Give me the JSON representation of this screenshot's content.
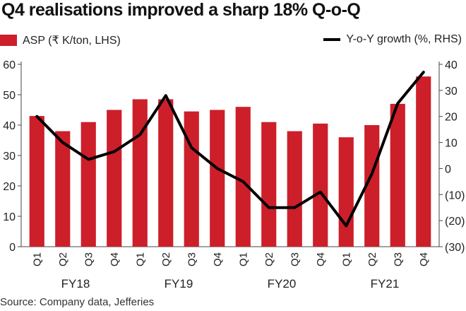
{
  "title": "Q4 realisations improved a sharp 18% Q-o-Q",
  "source": "Source: Company data, Jefferies",
  "colors": {
    "bar": "#cc1f2a",
    "line": "#000000",
    "axis": "#444444",
    "text": "#222222"
  },
  "chart_data": {
    "type": "bar+line",
    "categories": [
      "Q1",
      "Q2",
      "Q3",
      "Q4",
      "Q1",
      "Q2",
      "Q3",
      "Q4",
      "Q1",
      "Q2",
      "Q3",
      "Q4",
      "Q1",
      "Q2",
      "Q3",
      "Q4"
    ],
    "fiscal_years": [
      {
        "label": "FY18",
        "from": 0,
        "to": 3
      },
      {
        "label": "FY19",
        "from": 4,
        "to": 7
      },
      {
        "label": "FY20",
        "from": 8,
        "to": 11
      },
      {
        "label": "FY21",
        "from": 12,
        "to": 15
      }
    ],
    "series": [
      {
        "name": "ASP (₹ K/ton, LHS)",
        "type": "bar",
        "axis": "left",
        "values": [
          43,
          38,
          41,
          45,
          48.5,
          48.5,
          44.5,
          45,
          46,
          41,
          38,
          40.5,
          36,
          40,
          47,
          56
        ]
      },
      {
        "name": "Y-o-Y growth (%, RHS)",
        "type": "line",
        "axis": "right",
        "values": [
          20,
          10,
          3.5,
          6.5,
          13,
          28,
          8,
          0,
          -5,
          -15,
          -15,
          -9,
          -22,
          -2,
          25,
          37
        ]
      }
    ],
    "left_axis": {
      "ylim": [
        0,
        60
      ],
      "ticks": [
        "0",
        "10",
        "20",
        "30",
        "40",
        "50",
        "60"
      ]
    },
    "right_axis": {
      "ylim": [
        -30,
        40
      ],
      "ticks": [
        "(30)",
        "(20)",
        "(10)",
        "0",
        "10",
        "20",
        "30",
        "40"
      ]
    },
    "legend": {
      "bar_label": "ASP (₹ K/ton, LHS)",
      "line_label": "Y-o-Y growth (%, RHS)"
    }
  }
}
